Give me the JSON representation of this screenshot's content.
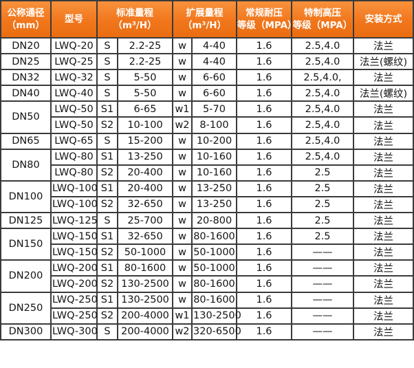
{
  "colors": {
    "header_orange": "#f1761c",
    "header_orange_light": "#f8923d",
    "header_orange_dark": "#ea6d10",
    "header_text": "#ffffff",
    "border": "#3a3a3a",
    "cell_text": "#141414"
  },
  "table": {
    "header": {
      "nominal_diameter_line1": "公称通径",
      "nominal_diameter_line2": "（mm）",
      "model": "型号",
      "standard_range_line1": "标准量程",
      "standard_range_line2": "（m³/H）",
      "extended_range_line1": "扩展量程",
      "extended_range_line2": "（m³/H）",
      "normal_pressure_line1": "常规耐压",
      "normal_pressure_line2": "等级（MPA）",
      "high_pressure_line1": "特制高压",
      "high_pressure_line2": "等级（MPA）",
      "installation": "安装方式"
    },
    "rows": [
      {
        "dn": "DN20",
        "dn_span": 1,
        "model": "LWQ-20",
        "s": "S",
        "std": "2.2-25",
        "w": "w",
        "ext": "4-40",
        "pn": "1.6",
        "hp": "2.5,4.0",
        "install": "法兰"
      },
      {
        "dn": "DN25",
        "dn_span": 1,
        "model": "LWQ-25",
        "s": "S",
        "std": "2.2-25",
        "w": "w",
        "ext": "4-40",
        "pn": "1.6",
        "hp": "2.5,4.0",
        "install": "法兰(螺纹)"
      },
      {
        "dn": "DN32",
        "dn_span": 1,
        "model": "LWQ-32",
        "s": "S",
        "std": "5-50",
        "w": "w",
        "ext": "6-60",
        "pn": "1.6",
        "hp": "2.5,4.0,",
        "install": "法兰"
      },
      {
        "dn": "DN40",
        "dn_span": 1,
        "model": "LWQ-40",
        "s": "S",
        "std": "5-50",
        "w": "w",
        "ext": "6-60",
        "pn": "1.6",
        "hp": "2.5,4.0",
        "install": "法兰(螺纹)"
      },
      {
        "dn": "DN50",
        "dn_span": 2,
        "model": "LWQ-50",
        "s": "S1",
        "std": "6-65",
        "w": "w1",
        "ext": "5-70",
        "pn": "1.6",
        "hp": "2.5,4.0",
        "install": "法兰"
      },
      {
        "dn": null,
        "dn_span": 0,
        "model": "LWQ-50",
        "s": "S2",
        "std": "10-100",
        "w": "w2",
        "ext": "8-100",
        "pn": "1.6",
        "hp": "2.5,4.0",
        "install": "法兰"
      },
      {
        "dn": "DN65",
        "dn_span": 1,
        "model": "LWQ-65",
        "s": "S",
        "std": "15-200",
        "w": "w",
        "ext": "10-200",
        "pn": "1.6",
        "hp": "2.5,4.0",
        "install": "法兰"
      },
      {
        "dn": "DN80",
        "dn_span": 2,
        "model": "LWQ-80",
        "s": "S1",
        "std": "13-250",
        "w": "w",
        "ext": "10-160",
        "pn": "1.6",
        "hp": "2.5,4.0",
        "install": "法兰"
      },
      {
        "dn": null,
        "dn_span": 0,
        "model": "LWQ-80",
        "s": "S2",
        "std": "20-400",
        "w": "w",
        "ext": "10-160",
        "pn": "1.6",
        "hp": "2.5",
        "install": "法兰"
      },
      {
        "dn": "DN100",
        "dn_span": 2,
        "model": "LWQ-100",
        "s": "S1",
        "std": "20-400",
        "w": "w",
        "ext": "13-250",
        "pn": "1.6",
        "hp": "2.5",
        "install": "法兰"
      },
      {
        "dn": null,
        "dn_span": 0,
        "model": "LWQ-100",
        "s": "S2",
        "std": "32-650",
        "w": "w",
        "ext": "13-250",
        "pn": "1.6",
        "hp": "2.5",
        "install": "法兰"
      },
      {
        "dn": "DN125",
        "dn_span": 1,
        "model": "LWQ-125",
        "s": "S",
        "std": "25-700",
        "w": "w",
        "ext": "20-800",
        "pn": "1.6",
        "hp": "2.5",
        "install": "法兰"
      },
      {
        "dn": "DN150",
        "dn_span": 2,
        "model": "LWQ-150",
        "s": "S1",
        "std": "32-650",
        "w": "w",
        "ext": "80-1600",
        "pn": "1.6",
        "hp": "2.5",
        "install": "法兰"
      },
      {
        "dn": null,
        "dn_span": 0,
        "model": "LWQ-150",
        "s": "S2",
        "std": "50-1000",
        "w": "w",
        "ext": "50-1000",
        "pn": "1.6",
        "hp": "——",
        "install": "法兰"
      },
      {
        "dn": "DN200",
        "dn_span": 2,
        "model": "LWQ-200",
        "s": "S1",
        "std": "80-1600",
        "w": "w",
        "ext": "50-1000",
        "pn": "1.6",
        "hp": "——",
        "install": "法兰"
      },
      {
        "dn": null,
        "dn_span": 0,
        "model": "LWQ-200",
        "s": "S2",
        "std": "130-2500",
        "w": "w",
        "ext": "80-1600",
        "pn": "1.6",
        "hp": "——",
        "install": "法兰"
      },
      {
        "dn": "DN250",
        "dn_span": 2,
        "model": "LWQ-250",
        "s": "S1",
        "std": "130-2500",
        "w": "w",
        "ext": "80-1600",
        "pn": "1.6",
        "hp": "——",
        "install": "法兰"
      },
      {
        "dn": null,
        "dn_span": 0,
        "model": "LWQ-250",
        "s": "S2",
        "std": "200-4000",
        "w": "w1",
        "ext": "130-2500",
        "pn": "1.6",
        "hp": "——",
        "install": "法兰"
      },
      {
        "dn": "DN300",
        "dn_span": 1,
        "model": "LWQ-300",
        "s": "S",
        "std": "200-4000",
        "w": "w2",
        "ext": "320-6500",
        "pn": "1.6",
        "hp": "——",
        "install": "法兰"
      }
    ]
  }
}
